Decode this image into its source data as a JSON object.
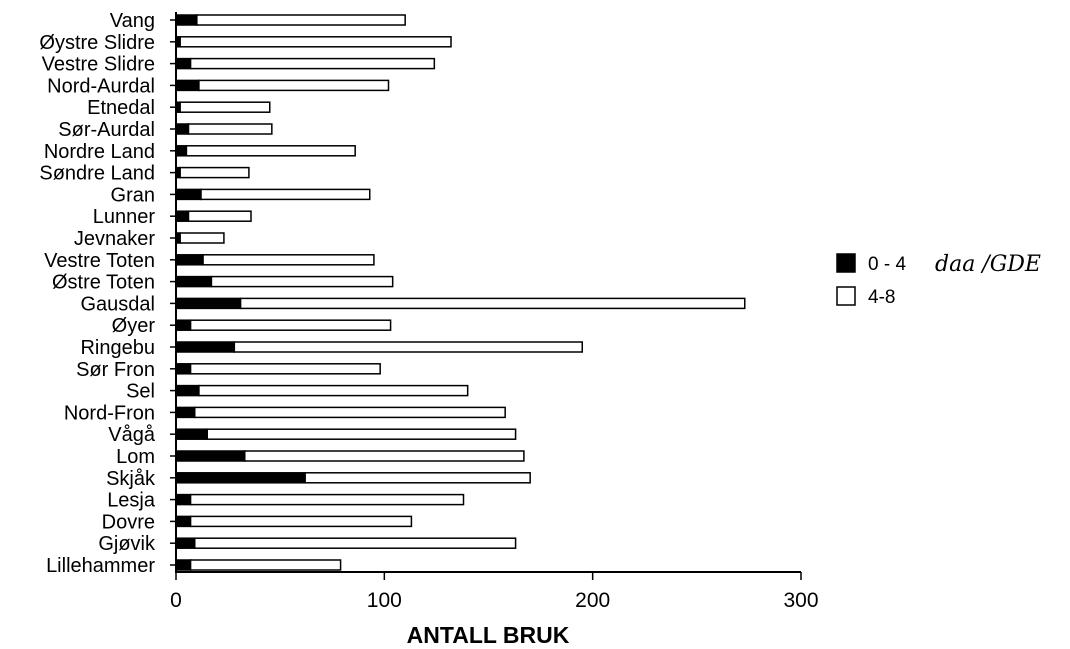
{
  "chart_data": {
    "type": "bar",
    "orientation": "horizontal",
    "stacked": true,
    "categories": [
      "Vang",
      "Øystre Slidre",
      "Vestre Slidre",
      "Nord-Aurdal",
      "Etnedal",
      "Sør-Aurdal",
      "Nordre Land",
      "Søndre Land",
      "Gran",
      "Lunner",
      "Jevnaker",
      "Vestre Toten",
      "Østre Toten",
      "Gausdal",
      "Øyer",
      "Ringebu",
      "Sør Fron",
      "Sel",
      "Nord-Fron",
      "Vågå",
      "Lom",
      "Skjåk",
      "Lesja",
      "Dovre",
      "Gjøvik",
      "Lillehammer"
    ],
    "series": [
      {
        "name": "0 - 4",
        "color": "#000000",
        "values": [
          10,
          2,
          7,
          11,
          2,
          6,
          5,
          2,
          12,
          6,
          2,
          13,
          17,
          31,
          7,
          28,
          7,
          11,
          9,
          15,
          33,
          62,
          7,
          7,
          9,
          7
        ]
      },
      {
        "name": "4-8",
        "color": "#ffffff",
        "values": [
          100,
          130,
          117,
          91,
          43,
          40,
          81,
          33,
          81,
          30,
          21,
          82,
          87,
          242,
          96,
          167,
          91,
          129,
          149,
          148,
          134,
          108,
          131,
          106,
          154,
          72
        ]
      }
    ],
    "xlabel": "ANTALL BRUK",
    "xticks": [
      0,
      100,
      200,
      300
    ],
    "xlim": [
      0,
      300
    ],
    "grid": false,
    "legend": {
      "position": "right",
      "annotation": "daa /GDE"
    }
  }
}
